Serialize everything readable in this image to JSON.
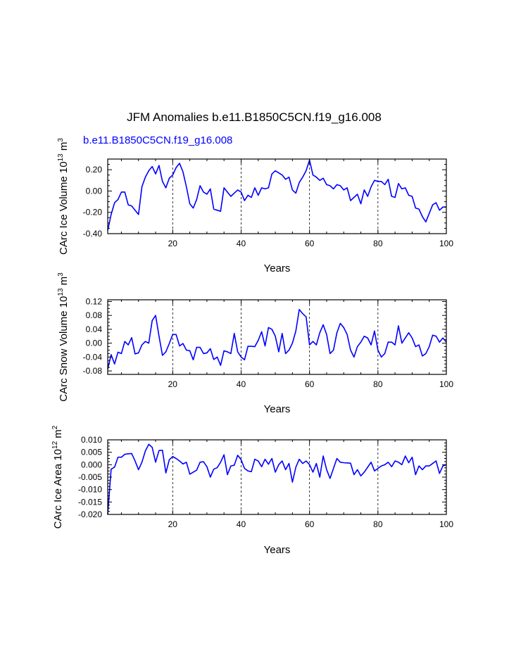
{
  "title": "JFM Anomalies b.e11.B1850C5CN.f19_g16.008",
  "subtitle": "b.e11.B1850C5CN.f19_g16.008",
  "chart_data": [
    {
      "type": "line",
      "name": "ice-volume",
      "ylabel": "CArc Ice Volume 10",
      "ylabel_exp": "13",
      "ylabel_unit": "m",
      "ylabel_unit_exp": "3",
      "xlabel": "Years",
      "xlim": [
        1,
        100
      ],
      "ylim": [
        -0.4,
        0.3
      ],
      "xticks": [
        20,
        40,
        60,
        80,
        100
      ],
      "xtick_labels": [
        "20",
        "40",
        "60",
        "80",
        "100"
      ],
      "yticks": [
        -0.4,
        -0.2,
        0.0,
        0.2
      ],
      "ytick_labels": [
        "-0.40",
        "-0.20",
        "0.00",
        "0.20"
      ],
      "grid_x": [
        20,
        40,
        60,
        80
      ],
      "color": "#0000ff",
      "x_start": 1,
      "values": [
        -0.37,
        -0.22,
        -0.11,
        -0.08,
        -0.01,
        -0.01,
        -0.13,
        -0.14,
        -0.18,
        -0.22,
        0.04,
        0.13,
        0.19,
        0.23,
        0.16,
        0.24,
        0.09,
        0.03,
        0.12,
        0.15,
        0.22,
        0.26,
        0.18,
        0.04,
        -0.12,
        -0.16,
        -0.08,
        0.05,
        -0.01,
        -0.03,
        0.02,
        -0.17,
        -0.18,
        -0.19,
        0.03,
        -0.01,
        -0.05,
        -0.02,
        0.01,
        -0.01,
        -0.09,
        -0.04,
        -0.06,
        0.03,
        -0.04,
        0.03,
        0.02,
        0.03,
        0.16,
        0.19,
        0.17,
        0.15,
        0.11,
        0.13,
        0.01,
        -0.02,
        0.08,
        0.13,
        0.19,
        0.29,
        0.15,
        0.13,
        0.1,
        0.12,
        0.06,
        0.05,
        0.02,
        0.06,
        0.05,
        0.01,
        0.03,
        -0.09,
        -0.06,
        -0.03,
        -0.12,
        0.01,
        -0.05,
        0.04,
        0.1,
        0.09,
        0.09,
        0.06,
        0.11,
        -0.05,
        -0.06,
        0.07,
        0.02,
        0.03,
        -0.04,
        -0.05,
        -0.16,
        -0.17,
        -0.24,
        -0.29,
        -0.21,
        -0.13,
        -0.11,
        -0.18,
        -0.15,
        -0.15
      ]
    },
    {
      "type": "line",
      "name": "snow-volume",
      "ylabel": "CArc Snow Volume 10",
      "ylabel_exp": "13",
      "ylabel_unit": "m",
      "ylabel_unit_exp": "3",
      "xlabel": "Years",
      "xlim": [
        1,
        100
      ],
      "ylim": [
        -0.09,
        0.125
      ],
      "xticks": [
        20,
        40,
        60,
        80,
        100
      ],
      "xtick_labels": [
        "20",
        "40",
        "60",
        "80",
        "100"
      ],
      "yticks": [
        -0.08,
        -0.04,
        0.0,
        0.04,
        0.08,
        0.12
      ],
      "ytick_labels": [
        "-0.08",
        "-0.04",
        "0.00",
        "0.04",
        "0.08",
        "0.12"
      ],
      "grid_x": [
        20,
        40,
        60,
        80
      ],
      "color": "#0000ff",
      "x_start": 1,
      "values": [
        -0.075,
        -0.033,
        -0.06,
        -0.026,
        -0.03,
        0.005,
        -0.005,
        0.016,
        -0.031,
        -0.028,
        -0.005,
        0.005,
        0.0,
        0.065,
        0.08,
        0.02,
        -0.035,
        -0.025,
        -0.001,
        0.025,
        0.025,
        -0.008,
        -0.001,
        -0.02,
        -0.022,
        -0.048,
        -0.012,
        -0.012,
        -0.03,
        -0.028,
        -0.016,
        -0.047,
        -0.04,
        -0.064,
        -0.022,
        -0.025,
        -0.03,
        0.028,
        -0.025,
        -0.04,
        -0.048,
        -0.009,
        -0.009,
        -0.01,
        0.008,
        0.033,
        -0.008,
        0.045,
        0.04,
        0.02,
        -0.025,
        0.028,
        -0.03,
        -0.02,
        0.0,
        0.035,
        0.097,
        0.085,
        0.076,
        -0.005,
        0.005,
        -0.005,
        0.03,
        0.053,
        0.025,
        -0.03,
        -0.02,
        0.03,
        0.057,
        0.045,
        0.025,
        -0.02,
        -0.04,
        -0.01,
        0.003,
        0.02,
        0.015,
        -0.005,
        0.035,
        -0.02,
        -0.04,
        -0.03,
        0.003,
        0.003,
        -0.005,
        0.05,
        0.0,
        0.015,
        0.03,
        0.015,
        -0.01,
        -0.005,
        -0.037,
        -0.03,
        -0.01,
        0.023,
        0.02,
        0.003,
        0.015,
        0.003
      ]
    },
    {
      "type": "line",
      "name": "ice-area",
      "ylabel": "CArc Ice Area 10",
      "ylabel_exp": "12",
      "ylabel_unit": "m",
      "ylabel_unit_exp": "2",
      "xlabel": "Years",
      "xlim": [
        1,
        100
      ],
      "ylim": [
        -0.02,
        0.01
      ],
      "xticks": [
        20,
        40,
        60,
        80,
        100
      ],
      "xtick_labels": [
        "20",
        "40",
        "60",
        "80",
        "100"
      ],
      "yticks": [
        -0.02,
        -0.015,
        -0.01,
        -0.005,
        0.0,
        0.005,
        0.01
      ],
      "ytick_labels": [
        "-0.020",
        "-0.015",
        "-0.010",
        "-0.005",
        "0.000",
        "0.005",
        "0.010"
      ],
      "grid_x": [
        20,
        40,
        60,
        80
      ],
      "color": "#0000ff",
      "x_start": 1,
      "values": [
        -0.02,
        -0.0018,
        -0.001,
        0.003,
        0.003,
        0.0042,
        0.0044,
        0.0045,
        0.0015,
        -0.002,
        0.001,
        0.0055,
        0.0082,
        0.007,
        0.001,
        0.0057,
        0.0058,
        -0.0033,
        0.002,
        0.0033,
        0.0025,
        0.0015,
        0.0003,
        0.001,
        -0.0038,
        -0.003,
        -0.0022,
        0.001,
        0.0012,
        -0.0008,
        -0.005,
        -0.0018,
        -0.0012,
        0.001,
        0.004,
        -0.004,
        -0.0005,
        -0.0002,
        0.0038,
        0.002,
        -0.0015,
        -0.0025,
        -0.0028,
        0.0022,
        0.0015,
        -0.0008,
        0.0022,
        0.0002,
        0.0025,
        -0.003,
        0.0,
        0.0015,
        -0.002,
        0.0005,
        -0.007,
        -0.001,
        0.0022,
        0.0005,
        0.0015,
        0.0,
        -0.003,
        0.0005,
        -0.005,
        0.0035,
        -0.002,
        -0.0055,
        -0.0015,
        0.0025,
        0.001,
        0.0008,
        0.0007,
        0.0006,
        -0.004,
        -0.002,
        -0.0045,
        -0.003,
        -0.001,
        0.001,
        -0.0025,
        -0.0015,
        -0.0005,
        0.0,
        0.001,
        -0.0008,
        0.0015,
        0.001,
        0.0,
        0.0035,
        0.0008,
        0.003,
        -0.004,
        -0.0005,
        -0.002,
        -0.0005,
        -0.0005,
        0.0005,
        0.0015,
        -0.0035,
        -0.0005,
        0.0
      ]
    }
  ]
}
